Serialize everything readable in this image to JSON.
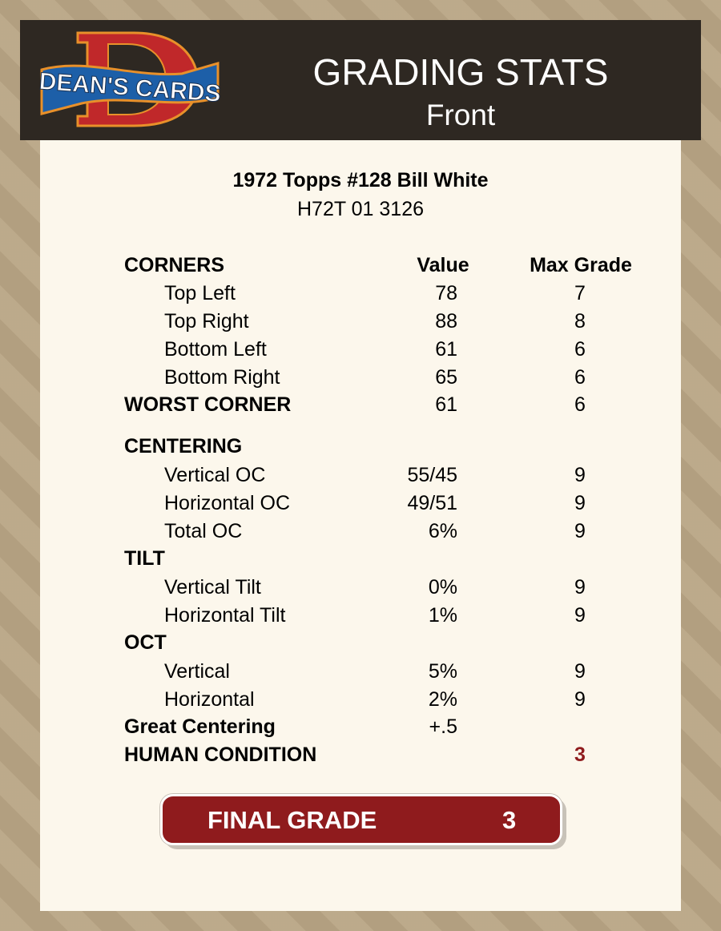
{
  "header": {
    "logo_text": "DEAN'S CARDS",
    "title": "GRADING STATS",
    "subtitle": "Front"
  },
  "card": {
    "name": "1972 Topps #128 Bill White",
    "cert": "H72T 01 3126"
  },
  "columns": {
    "value": "Value",
    "max": "Max Grade"
  },
  "rows": [
    {
      "label": "CORNERS",
      "type": "header"
    },
    {
      "label": "Top Left",
      "value": "78",
      "max": "7",
      "type": "sub"
    },
    {
      "label": "Top Right",
      "value": "88",
      "max": "8",
      "type": "sub"
    },
    {
      "label": "Bottom Left",
      "value": "61",
      "max": "6",
      "type": "sub"
    },
    {
      "label": "Bottom Right",
      "value": "65",
      "max": "6",
      "type": "sub"
    },
    {
      "label": "WORST CORNER",
      "value": "61",
      "max": "6",
      "type": "bold"
    },
    {
      "label": "CENTERING",
      "type": "bold"
    },
    {
      "label": "Vertical OC",
      "value": "55/45",
      "max": "9",
      "type": "sub"
    },
    {
      "label": "Horizontal OC",
      "value": "49/51",
      "max": "9",
      "type": "sub"
    },
    {
      "label": "Total OC",
      "value": "6%",
      "max": "9",
      "type": "sub"
    },
    {
      "label": "TILT",
      "type": "bold"
    },
    {
      "label": "Vertical Tilt",
      "value": "0%",
      "max": "9",
      "type": "sub"
    },
    {
      "label": "Horizontal Tilt",
      "value": "1%",
      "max": "9",
      "type": "sub"
    },
    {
      "label": "OCT",
      "type": "bold"
    },
    {
      "label": "Vertical",
      "value": "5%",
      "max": "9",
      "type": "sub"
    },
    {
      "label": "Horizontal",
      "value": "2%",
      "max": "9",
      "type": "sub"
    },
    {
      "label": "Great Centering",
      "value": "+.5",
      "type": "bold"
    },
    {
      "label": "HUMAN CONDITION",
      "max": "3",
      "type": "bold",
      "max_color": "#8f1b1d"
    }
  ],
  "final": {
    "label": "FINAL GRADE",
    "value": "3"
  },
  "colors": {
    "accent": "#8f1b1d",
    "header_bg": "#2e2822",
    "panel_bg": "#fcf7ec"
  }
}
